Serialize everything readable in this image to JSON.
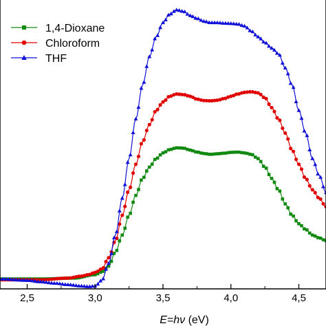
{
  "chart_data": {
    "type": "line",
    "xlabel_italic": "E=h",
    "xlabel_nu": "ν",
    "xlabel_unit": " (eV)",
    "xlim": [
      2.3,
      4.7
    ],
    "ylim": [
      -0.02,
      1.0
    ],
    "x_ticks": [
      2.5,
      3.0,
      3.5,
      4.0,
      4.5
    ],
    "x_tick_labels": [
      "2,5",
      "3,0",
      "3,5",
      "4,0",
      "4,5"
    ],
    "grid": false,
    "legend_position": "top-left",
    "series": [
      {
        "name": "1,4-Dioxane",
        "color": "#128a12",
        "marker": "square",
        "points": [
          [
            2.3,
            0.015
          ],
          [
            2.6,
            0.015
          ],
          [
            2.85,
            0.018
          ],
          [
            3.0,
            0.03
          ],
          [
            3.05,
            0.04
          ],
          [
            3.1,
            0.06
          ],
          [
            3.15,
            0.11
          ],
          [
            3.2,
            0.17
          ],
          [
            3.25,
            0.24
          ],
          [
            3.3,
            0.31
          ],
          [
            3.35,
            0.37
          ],
          [
            3.4,
            0.41
          ],
          [
            3.45,
            0.44
          ],
          [
            3.5,
            0.46
          ],
          [
            3.55,
            0.472
          ],
          [
            3.6,
            0.478
          ],
          [
            3.65,
            0.477
          ],
          [
            3.7,
            0.47
          ],
          [
            3.75,
            0.463
          ],
          [
            3.8,
            0.458
          ],
          [
            3.85,
            0.455
          ],
          [
            3.9,
            0.457
          ],
          [
            3.95,
            0.459
          ],
          [
            4.0,
            0.462
          ],
          [
            4.05,
            0.463
          ],
          [
            4.1,
            0.46
          ],
          [
            4.15,
            0.455
          ],
          [
            4.2,
            0.44
          ],
          [
            4.25,
            0.41
          ],
          [
            4.3,
            0.37
          ],
          [
            4.35,
            0.33
          ],
          [
            4.4,
            0.28
          ],
          [
            4.45,
            0.24
          ],
          [
            4.5,
            0.21
          ],
          [
            4.55,
            0.19
          ],
          [
            4.6,
            0.17
          ],
          [
            4.65,
            0.16
          ],
          [
            4.7,
            0.15
          ]
        ]
      },
      {
        "name": "Chloroform",
        "color": "#e00000",
        "marker": "circle",
        "points": [
          [
            2.3,
            0.012
          ],
          [
            2.6,
            0.012
          ],
          [
            2.8,
            0.018
          ],
          [
            2.9,
            0.025
          ],
          [
            2.95,
            0.03
          ],
          [
            3.0,
            0.038
          ],
          [
            3.05,
            0.05
          ],
          [
            3.1,
            0.09
          ],
          [
            3.15,
            0.15
          ],
          [
            3.2,
            0.24
          ],
          [
            3.25,
            0.33
          ],
          [
            3.3,
            0.42
          ],
          [
            3.35,
            0.5
          ],
          [
            3.4,
            0.56
          ],
          [
            3.45,
            0.61
          ],
          [
            3.5,
            0.64
          ],
          [
            3.55,
            0.66
          ],
          [
            3.6,
            0.668
          ],
          [
            3.65,
            0.666
          ],
          [
            3.7,
            0.66
          ],
          [
            3.75,
            0.65
          ],
          [
            3.8,
            0.645
          ],
          [
            3.85,
            0.644
          ],
          [
            3.9,
            0.646
          ],
          [
            3.95,
            0.652
          ],
          [
            4.0,
            0.66
          ],
          [
            4.05,
            0.668
          ],
          [
            4.1,
            0.674
          ],
          [
            4.15,
            0.676
          ],
          [
            4.2,
            0.672
          ],
          [
            4.25,
            0.655
          ],
          [
            4.3,
            0.62
          ],
          [
            4.35,
            0.58
          ],
          [
            4.4,
            0.53
          ],
          [
            4.45,
            0.47
          ],
          [
            4.5,
            0.42
          ],
          [
            4.55,
            0.37
          ],
          [
            4.6,
            0.33
          ],
          [
            4.65,
            0.3
          ],
          [
            4.7,
            0.27
          ]
        ]
      },
      {
        "name": "THF",
        "color": "#1010d8",
        "marker": "triangle",
        "points": [
          [
            2.3,
            0.015
          ],
          [
            2.5,
            0.01
          ],
          [
            2.6,
            0.005
          ],
          [
            2.7,
            0.0
          ],
          [
            2.8,
            -0.005
          ],
          [
            2.9,
            -0.01
          ],
          [
            2.95,
            -0.012
          ],
          [
            3.0,
            -0.01
          ],
          [
            3.05,
            0.01
          ],
          [
            3.1,
            0.07
          ],
          [
            3.15,
            0.17
          ],
          [
            3.2,
            0.3
          ],
          [
            3.25,
            0.44
          ],
          [
            3.3,
            0.58
          ],
          [
            3.35,
            0.7
          ],
          [
            3.4,
            0.8
          ],
          [
            3.45,
            0.87
          ],
          [
            3.5,
            0.92
          ],
          [
            3.55,
            0.95
          ],
          [
            3.6,
            0.965
          ],
          [
            3.65,
            0.96
          ],
          [
            3.7,
            0.945
          ],
          [
            3.75,
            0.935
          ],
          [
            3.8,
            0.925
          ],
          [
            3.85,
            0.92
          ],
          [
            3.9,
            0.92
          ],
          [
            3.95,
            0.918
          ],
          [
            4.0,
            0.917
          ],
          [
            4.05,
            0.915
          ],
          [
            4.1,
            0.908
          ],
          [
            4.15,
            0.89
          ],
          [
            4.2,
            0.87
          ],
          [
            4.25,
            0.85
          ],
          [
            4.3,
            0.83
          ],
          [
            4.35,
            0.81
          ],
          [
            4.4,
            0.76
          ],
          [
            4.45,
            0.7
          ],
          [
            4.5,
            0.61
          ],
          [
            4.55,
            0.53
          ],
          [
            4.6,
            0.44
          ],
          [
            4.65,
            0.38
          ],
          [
            4.7,
            0.32
          ]
        ]
      }
    ]
  }
}
